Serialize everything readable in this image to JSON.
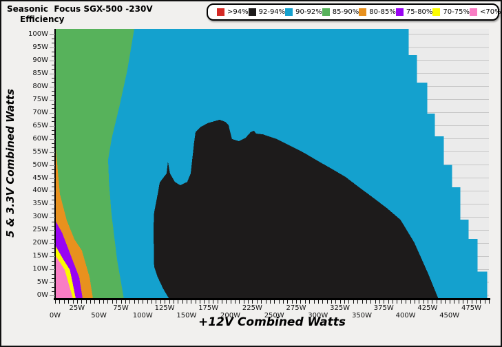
{
  "header": {
    "title": "Seasonic  Focus SGX-500 -230V",
    "subtitle": "Efficiency"
  },
  "chart_data": {
    "type": "heatmap",
    "title": "Seasonic  Focus SGX-500 -230V",
    "subtitle": "Efficiency",
    "xlabel": "+12V Combined Watts",
    "ylabel": "5 & 3.3V Combined Watts",
    "x_range_watts": [
      0,
      495
    ],
    "y_range_watts": [
      0,
      102
    ],
    "x_major_tick_step": 25,
    "x_minor_tick_step": 5,
    "y_major_tick_step": 5,
    "grid": "horizontal gray lines every 5W, visible only in no-data area",
    "background_color": "#ebebeb",
    "gridline_color": "#c6c6c6",
    "x_axis": {
      "title": "+12V Combined Watts",
      "tick_labels": [
        "0W",
        "25W",
        "50W",
        "75W",
        "100W",
        "125W",
        "150W",
        "175W",
        "200W",
        "225W",
        "250W",
        "275W",
        "300W",
        "325W",
        "350W",
        "375W",
        "400W",
        "425W",
        "450W",
        "475W"
      ]
    },
    "y_axis": {
      "title": "5 & 3.3V Combined Watts",
      "tick_labels": [
        "0W",
        "5W",
        "10W",
        "15W",
        "20W",
        "25W",
        "30W",
        "35W",
        "40W",
        "45W",
        "50W",
        "55W",
        "60W",
        "65W",
        "70W",
        "75W",
        "80W",
        "85W",
        "90W",
        "95W",
        "100W"
      ]
    },
    "legend": [
      {
        "label": ">94%",
        "color": "#d42a26"
      },
      {
        "label": "92-94%",
        "color": "#1d1b1b"
      },
      {
        "label": "90-92%",
        "color": "#14a1ce"
      },
      {
        "label": "85-90%",
        "color": "#57b25b"
      },
      {
        "label": "80-85%",
        "color": "#e8911e"
      },
      {
        "label": "75-80%",
        "color": "#9803f2"
      },
      {
        "label": "70-75%",
        "color": "#fcfc00"
      },
      {
        "label": "<70%",
        "color": "#f97dc4"
      }
    ],
    "note": "Top-right gray staircase = no data (total output limit ~500W). Polygon points are [x_watts_12V, y_watts_5V_3.3V], painted in order.",
    "regions": [
      {
        "band": "90-92%",
        "color": "#14a1ce",
        "points": [
          [
            0,
            102
          ],
          [
            403.6,
            102
          ],
          [
            403.6,
            92
          ],
          [
            413,
            92
          ],
          [
            413,
            81.5
          ],
          [
            424.8,
            81.5
          ],
          [
            424.8,
            69.6
          ],
          [
            433.4,
            69.6
          ],
          [
            433.4,
            61
          ],
          [
            443.6,
            61
          ],
          [
            443.6,
            50
          ],
          [
            453,
            50
          ],
          [
            453,
            41.4
          ],
          [
            462.5,
            41.4
          ],
          [
            462.5,
            29
          ],
          [
            471.9,
            29
          ],
          [
            471.9,
            21.6
          ],
          [
            482.1,
            21.6
          ],
          [
            482.1,
            9.2
          ],
          [
            493.1,
            9.2
          ],
          [
            493.1,
            -1.2
          ],
          [
            0,
            -1.2
          ]
        ]
      },
      {
        "band": "85-90%",
        "color": "#57b25b",
        "points": [
          [
            0,
            102
          ],
          [
            90.3,
            102
          ],
          [
            82.4,
            86.3
          ],
          [
            73.8,
            73
          ],
          [
            64.4,
            59.9
          ],
          [
            60.5,
            52
          ],
          [
            61.5,
            43
          ],
          [
            64.4,
            31
          ],
          [
            70.7,
            13.7
          ],
          [
            78.5,
            -1.2
          ],
          [
            0,
            -1.2
          ]
        ]
      },
      {
        "band": "80-85%",
        "color": "#e8911e",
        "points": [
          [
            0,
            59.4
          ],
          [
            5.5,
            38.8
          ],
          [
            13.3,
            28.8
          ],
          [
            22,
            21.5
          ],
          [
            30.6,
            17.2
          ],
          [
            39.3,
            7.1
          ],
          [
            43.2,
            -1.2
          ],
          [
            0,
            -1.2
          ]
        ]
      },
      {
        "band": "75-80%",
        "color": "#9803f2",
        "points": [
          [
            0,
            28.8
          ],
          [
            8,
            24
          ],
          [
            20,
            13.5
          ],
          [
            27.5,
            7
          ],
          [
            31.4,
            -1.2
          ],
          [
            0,
            -1.2
          ]
        ]
      },
      {
        "band": "70-75%",
        "color": "#fcfc00",
        "points": [
          [
            0,
            19.3
          ],
          [
            9,
            14
          ],
          [
            17,
            9.8
          ],
          [
            23.6,
            -1.2
          ],
          [
            0,
            -1.2
          ]
        ]
      },
      {
        "band": "<70%",
        "color": "#f97dc4",
        "points": [
          [
            0,
            15.6
          ],
          [
            11,
            9.8
          ],
          [
            20.4,
            -1.2
          ],
          [
            0,
            -1.2
          ]
        ]
      },
      {
        "band": "92-94%",
        "color": "#1d1b1b",
        "points": [
          [
            130,
            -1.2
          ],
          [
            123.3,
            2.6
          ],
          [
            117,
            7.1
          ],
          [
            113,
            11.1
          ],
          [
            112.3,
            25.6
          ],
          [
            113,
            31.7
          ],
          [
            117.8,
            40.1
          ],
          [
            119.4,
            43.3
          ],
          [
            127.2,
            46.7
          ],
          [
            128.8,
            51.2
          ],
          [
            131.1,
            46.7
          ],
          [
            136.6,
            43.5
          ],
          [
            142.9,
            42.2
          ],
          [
            150.8,
            43.5
          ],
          [
            154.7,
            46.7
          ],
          [
            158.6,
            58.6
          ],
          [
            160.2,
            62.5
          ],
          [
            166.5,
            64.6
          ],
          [
            174.3,
            66
          ],
          [
            187.7,
            67.3
          ],
          [
            194,
            66.5
          ],
          [
            197.9,
            65.2
          ],
          [
            201.8,
            59.9
          ],
          [
            209.6,
            59.1
          ],
          [
            217.5,
            60.4
          ],
          [
            223,
            62.5
          ],
          [
            226.9,
            63.1
          ],
          [
            229.3,
            62
          ],
          [
            237.1,
            61.7
          ],
          [
            252.8,
            59.9
          ],
          [
            268.5,
            57.3
          ],
          [
            284.2,
            54.6
          ],
          [
            299.9,
            51.5
          ],
          [
            315.6,
            48.5
          ],
          [
            331.3,
            45.4
          ],
          [
            347,
            41.4
          ],
          [
            362.7,
            37.5
          ],
          [
            378.4,
            33.5
          ],
          [
            394.1,
            29
          ],
          [
            409.8,
            20.3
          ],
          [
            425.6,
            8.4
          ],
          [
            437.3,
            -1.2
          ]
        ]
      }
    ]
  }
}
